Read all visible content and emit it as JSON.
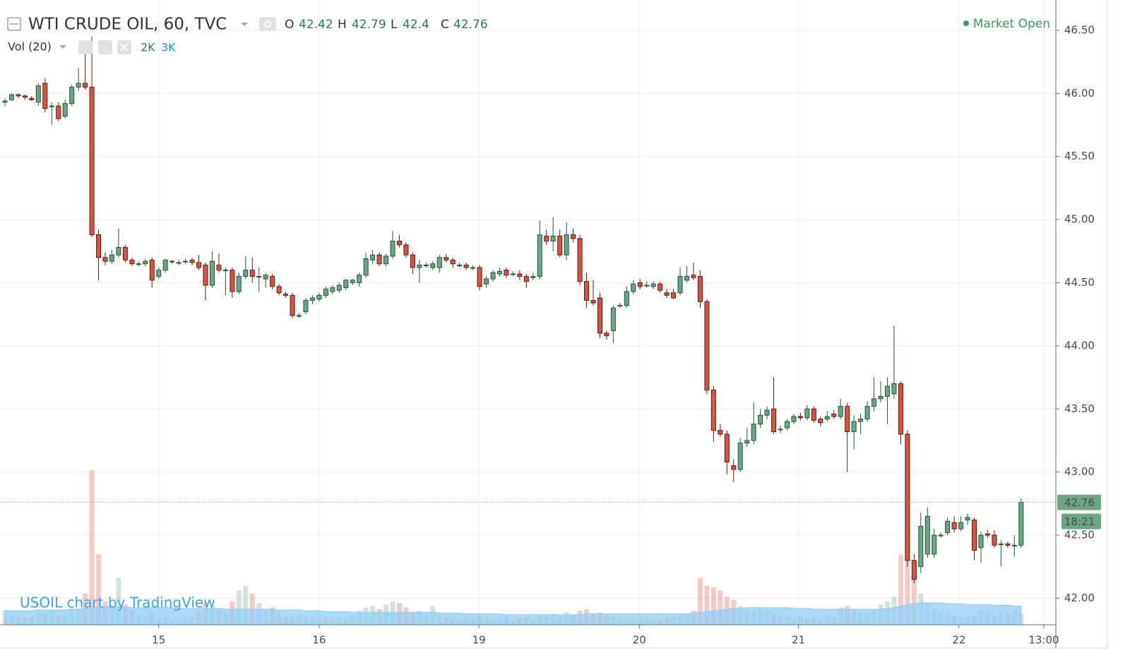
{
  "chart_data": {
    "type": "candlestick",
    "title": "WTI CRUDE OIL, 60, TVC",
    "ohlc_labels": [
      "O",
      "H",
      "L",
      "C"
    ],
    "volume_title": "Vol (20)",
    "volume_legend": [
      "2K",
      "3K"
    ],
    "status": "Market Open",
    "watermark": "USOIL chart by TradingView",
    "countdown": "18:21",
    "up_color": "#6ba583",
    "up_border": "#225437",
    "down_color": "#d75442",
    "down_border": "#5b1a13",
    "volume_ma_color": "#8fcdf5",
    "grid": true,
    "xlim": [
      -0.74,
      157.2
    ],
    "xticks": [
      {
        "value": 23.0,
        "label": "15"
      },
      {
        "value": 47.0,
        "label": "16"
      },
      {
        "value": 70.9,
        "label": "19"
      },
      {
        "value": 94.9,
        "label": "20"
      },
      {
        "value": 118.7,
        "label": "21"
      },
      {
        "value": 142.7,
        "label": "22"
      },
      {
        "value": 155.4,
        "label": "13:00"
      }
    ],
    "ylim": [
      41.79,
      46.74
    ],
    "yticks": [
      {
        "value": 42,
        "label": "42.00"
      },
      {
        "value": 42.5,
        "label": "42.50"
      },
      {
        "value": 43,
        "label": "43.00"
      },
      {
        "value": 43.5,
        "label": "43.50"
      },
      {
        "value": 44,
        "label": "44.00"
      },
      {
        "value": 44.5,
        "label": "44.50"
      },
      {
        "value": 45,
        "label": "45.00"
      },
      {
        "value": 45.5,
        "label": "45.50"
      },
      {
        "value": 46,
        "label": "46.00"
      },
      {
        "value": 46.5,
        "label": "46.50"
      }
    ],
    "volume_lim": [
      0,
      40000
    ],
    "candles": [
      [
        45.93,
        45.96,
        45.9,
        45.94
      ],
      [
        45.95,
        46,
        45.94,
        45.99
      ],
      [
        45.99,
        46,
        45.96,
        45.98
      ],
      [
        45.98,
        45.99,
        45.95,
        45.97
      ],
      [
        45.96,
        45.98,
        45.94,
        45.95
      ],
      [
        45.93,
        46.08,
        45.9,
        46.06
      ],
      [
        46.08,
        46.12,
        45.85,
        45.88
      ],
      [
        45.9,
        45.93,
        45.75,
        45.9
      ],
      [
        45.9,
        45.93,
        45.78,
        45.8
      ],
      [
        45.82,
        45.95,
        45.8,
        45.92
      ],
      [
        45.92,
        46.07,
        45.9,
        46.05
      ],
      [
        46.05,
        46.2,
        46.02,
        46.08
      ],
      [
        46.08,
        46.35,
        46.03,
        46.05
      ],
      [
        46.05,
        46.45,
        44.86,
        44.88
      ],
      [
        44.88,
        44.92,
        44.52,
        44.7
      ],
      [
        44.7,
        44.74,
        44.64,
        44.67
      ],
      [
        44.67,
        44.76,
        44.65,
        44.72
      ],
      [
        44.72,
        44.93,
        44.7,
        44.78
      ],
      [
        44.78,
        44.8,
        44.66,
        44.68
      ],
      [
        44.68,
        44.7,
        44.63,
        44.65
      ],
      [
        44.65,
        44.67,
        44.63,
        44.65
      ],
      [
        44.65,
        44.69,
        44.63,
        44.67
      ],
      [
        44.68,
        44.7,
        44.46,
        44.52
      ],
      [
        44.55,
        44.62,
        44.53,
        44.6
      ],
      [
        44.6,
        44.69,
        44.58,
        44.68
      ],
      [
        44.67,
        44.68,
        44.65,
        44.67
      ],
      [
        44.66,
        44.68,
        44.64,
        44.66
      ],
      [
        44.67,
        44.69,
        44.65,
        44.67
      ],
      [
        44.68,
        44.7,
        44.64,
        44.66
      ],
      [
        44.66,
        44.72,
        44.6,
        44.62
      ],
      [
        44.64,
        44.66,
        44.36,
        44.48
      ],
      [
        44.48,
        44.75,
        44.46,
        44.67
      ],
      [
        44.64,
        44.73,
        44.58,
        44.6
      ],
      [
        44.6,
        44.62,
        44.4,
        44.6
      ],
      [
        44.6,
        44.62,
        44.38,
        44.43
      ],
      [
        44.43,
        44.58,
        44.41,
        44.55
      ],
      [
        44.55,
        44.71,
        44.53,
        44.6
      ],
      [
        44.6,
        44.7,
        44.5,
        44.55
      ],
      [
        44.55,
        44.62,
        44.43,
        44.55
      ],
      [
        44.53,
        44.58,
        44.46,
        44.56
      ],
      [
        44.55,
        44.57,
        44.45,
        44.47
      ],
      [
        44.47,
        44.49,
        44.4,
        44.42
      ],
      [
        44.41,
        44.43,
        44.38,
        44.4
      ],
      [
        44.4,
        44.42,
        44.22,
        44.24
      ],
      [
        44.24,
        44.26,
        44.22,
        44.24
      ],
      [
        44.27,
        44.38,
        44.25,
        44.36
      ],
      [
        44.36,
        44.4,
        44.33,
        44.38
      ],
      [
        44.37,
        44.42,
        44.35,
        44.4
      ],
      [
        44.4,
        44.47,
        44.38,
        44.45
      ],
      [
        44.43,
        44.48,
        44.41,
        44.46
      ],
      [
        44.44,
        44.5,
        44.42,
        44.48
      ],
      [
        44.46,
        44.53,
        44.44,
        44.52
      ],
      [
        44.5,
        44.53,
        44.48,
        44.52
      ],
      [
        44.5,
        44.58,
        44.47,
        44.56
      ],
      [
        44.56,
        44.74,
        44.54,
        44.69
      ],
      [
        44.68,
        44.76,
        44.65,
        44.72
      ],
      [
        44.72,
        44.74,
        44.63,
        44.65
      ],
      [
        44.65,
        44.73,
        44.63,
        44.71
      ],
      [
        44.71,
        44.91,
        44.69,
        44.83
      ],
      [
        44.83,
        44.88,
        44.78,
        44.8
      ],
      [
        44.8,
        44.82,
        44.7,
        44.72
      ],
      [
        44.72,
        44.74,
        44.57,
        44.62
      ],
      [
        44.62,
        44.68,
        44.5,
        44.64
      ],
      [
        44.64,
        44.66,
        44.62,
        44.64
      ],
      [
        44.62,
        44.67,
        44.6,
        44.65
      ],
      [
        44.62,
        44.72,
        44.58,
        44.7
      ],
      [
        44.7,
        44.73,
        44.66,
        44.68
      ],
      [
        44.68,
        44.7,
        44.62,
        44.65
      ],
      [
        44.64,
        44.66,
        44.62,
        44.64
      ],
      [
        44.64,
        44.66,
        44.6,
        44.62
      ],
      [
        44.62,
        44.64,
        44.6,
        44.62
      ],
      [
        44.62,
        44.64,
        44.44,
        44.47
      ],
      [
        44.49,
        44.55,
        44.46,
        44.53
      ],
      [
        44.53,
        44.6,
        44.51,
        44.58
      ],
      [
        44.57,
        44.62,
        44.55,
        44.59
      ],
      [
        44.6,
        44.62,
        44.54,
        44.56
      ],
      [
        44.57,
        44.59,
        44.55,
        44.57
      ],
      [
        44.57,
        44.6,
        44.52,
        44.55
      ],
      [
        44.55,
        44.57,
        44.46,
        44.51
      ],
      [
        44.54,
        44.58,
        44.52,
        44.55
      ],
      [
        44.55,
        44.99,
        44.53,
        44.88
      ],
      [
        44.87,
        44.92,
        44.8,
        44.83
      ],
      [
        44.83,
        45.02,
        44.75,
        44.87
      ],
      [
        44.87,
        44.92,
        44.7,
        44.72
      ],
      [
        44.72,
        44.98,
        44.68,
        44.88
      ],
      [
        44.88,
        44.93,
        44.82,
        44.85
      ],
      [
        44.85,
        44.88,
        44.48,
        44.51
      ],
      [
        44.51,
        44.58,
        44.3,
        44.36
      ],
      [
        44.36,
        44.52,
        44.32,
        44.34
      ],
      [
        44.38,
        44.42,
        44.06,
        44.1
      ],
      [
        44.1,
        44.12,
        44.05,
        44.08
      ],
      [
        44.12,
        44.32,
        44.02,
        44.3
      ],
      [
        44.32,
        44.34,
        44.3,
        44.32
      ],
      [
        44.32,
        44.47,
        44.3,
        44.43
      ],
      [
        44.43,
        44.52,
        44.41,
        44.49
      ],
      [
        44.5,
        44.53,
        44.45,
        44.47
      ],
      [
        44.48,
        44.51,
        44.46,
        44.48
      ],
      [
        44.47,
        44.51,
        44.45,
        44.49
      ],
      [
        44.49,
        44.51,
        44.42,
        44.44
      ],
      [
        44.42,
        44.45,
        44.38,
        44.4
      ],
      [
        44.42,
        44.45,
        44.37,
        44.38
      ],
      [
        44.42,
        44.62,
        44.4,
        44.55
      ],
      [
        44.52,
        44.63,
        44.5,
        44.55
      ],
      [
        44.56,
        44.66,
        44.52,
        44.54
      ],
      [
        44.55,
        44.6,
        44.3,
        44.35
      ],
      [
        44.35,
        44.37,
        43.62,
        43.65
      ],
      [
        43.65,
        43.68,
        43.24,
        43.33
      ],
      [
        43.33,
        43.38,
        43.28,
        43.3
      ],
      [
        43.3,
        43.33,
        42.98,
        43.08
      ],
      [
        43.05,
        43.1,
        42.92,
        43.02
      ],
      [
        43.02,
        43.27,
        43,
        43.23
      ],
      [
        43.23,
        43.35,
        43.2,
        43.25
      ],
      [
        43.25,
        43.55,
        43.22,
        43.38
      ],
      [
        43.38,
        43.5,
        43.35,
        43.45
      ],
      [
        43.45,
        43.52,
        43.42,
        43.49
      ],
      [
        43.5,
        43.75,
        43.3,
        43.32
      ],
      [
        43.34,
        43.37,
        43.31,
        43.34
      ],
      [
        43.35,
        43.42,
        43.33,
        43.4
      ],
      [
        43.4,
        43.46,
        43.38,
        43.44
      ],
      [
        43.44,
        43.47,
        43.41,
        43.43
      ],
      [
        43.43,
        43.53,
        43.41,
        43.5
      ],
      [
        43.5,
        43.52,
        43.39,
        43.41
      ],
      [
        43.42,
        43.44,
        43.36,
        43.39
      ],
      [
        43.42,
        43.48,
        43.4,
        43.44
      ],
      [
        43.46,
        43.49,
        43.42,
        43.44
      ],
      [
        43.44,
        43.58,
        43.42,
        43.52
      ],
      [
        43.52,
        43.55,
        43,
        43.32
      ],
      [
        43.32,
        43.45,
        43.18,
        43.4
      ],
      [
        43.4,
        43.46,
        43.3,
        43.42
      ],
      [
        43.42,
        43.56,
        43.4,
        43.52
      ],
      [
        43.52,
        43.75,
        43.48,
        43.58
      ],
      [
        43.58,
        43.72,
        43.55,
        43.6
      ],
      [
        43.6,
        43.75,
        43.38,
        43.68
      ],
      [
        43.62,
        44.16,
        43.58,
        43.7
      ],
      [
        43.7,
        43.72,
        43.22,
        43.3
      ],
      [
        43.3,
        43.33,
        42.25,
        42.3
      ],
      [
        42.3,
        42.35,
        42.12,
        42.15
      ],
      [
        42.25,
        42.68,
        42.2,
        42.57
      ],
      [
        42.35,
        42.72,
        42.32,
        42.65
      ],
      [
        42.35,
        42.55,
        42.32,
        42.5
      ],
      [
        42.5,
        42.52,
        42.48,
        42.5
      ],
      [
        42.52,
        42.64,
        42.5,
        42.61
      ],
      [
        42.6,
        42.65,
        42.52,
        42.55
      ],
      [
        42.55,
        42.65,
        42.53,
        42.6
      ],
      [
        42.62,
        42.67,
        42.58,
        42.64
      ],
      [
        42.62,
        42.64,
        42.3,
        42.38
      ],
      [
        42.4,
        42.53,
        42.28,
        42.5
      ],
      [
        42.51,
        42.54,
        42.48,
        42.5
      ],
      [
        42.5,
        42.54,
        42.4,
        42.42
      ],
      [
        42.43,
        42.46,
        42.25,
        42.43
      ],
      [
        42.43,
        42.45,
        42.4,
        42.42
      ],
      [
        42.42,
        42.5,
        42.33,
        42.42
      ],
      [
        42.42,
        42.79,
        42.4,
        42.76
      ]
    ],
    "volume": [
      900,
      600,
      500,
      400,
      500,
      800,
      700,
      900,
      600,
      700,
      800,
      1000,
      2000,
      9900,
      4500,
      1500,
      1200,
      3000,
      1300,
      900,
      600,
      500,
      700,
      400,
      500,
      300,
      300,
      400,
      500,
      800,
      1400,
      1200,
      900,
      800,
      1500,
      2200,
      2500,
      2000,
      1400,
      900,
      1100,
      700,
      500,
      400,
      600,
      500,
      400,
      300,
      400,
      300,
      500,
      400,
      600,
      900,
      1100,
      1200,
      1000,
      1300,
      1500,
      1400,
      1100,
      800,
      900,
      700,
      1200,
      600,
      500,
      400,
      300,
      300,
      400,
      600,
      500,
      300,
      300,
      400,
      300,
      400,
      500,
      300,
      600,
      500,
      700,
      500,
      800,
      600,
      900,
      1000,
      700,
      800,
      600,
      500,
      400,
      300,
      300,
      300,
      400,
      300,
      300,
      400,
      500,
      600,
      700,
      900,
      3000,
      2500,
      2400,
      2200,
      1800,
      1600,
      1200,
      900,
      800,
      1000,
      900,
      700,
      600,
      500,
      400,
      500,
      400,
      400,
      300,
      600,
      500,
      1100,
      1200,
      900,
      800,
      700,
      900,
      1300,
      1500,
      1800,
      4500,
      5400,
      3200,
      2000,
      1400,
      1000,
      800,
      700,
      600,
      500,
      500,
      600,
      900,
      700,
      600,
      800,
      700,
      900,
      700
    ],
    "volume_ma": [
      900,
      900,
      900,
      900,
      900,
      950,
      950,
      950,
      950,
      950,
      1000,
      1000,
      1050,
      1100,
      1150,
      1150,
      1150,
      1150,
      1150,
      1100,
      1100,
      1100,
      1100,
      1100,
      1100,
      1100,
      1050,
      1050,
      1050,
      1050,
      1050,
      1050,
      1050,
      1000,
      1000,
      1000,
      1000,
      1000,
      1000,
      1000,
      1000,
      950,
      950,
      950,
      950,
      900,
      900,
      900,
      850,
      850,
      850,
      850,
      800,
      800,
      800,
      800,
      800,
      800,
      800,
      800,
      800,
      800,
      800,
      800,
      800,
      750,
      750,
      750,
      750,
      700,
      700,
      700,
      700,
      700,
      700,
      650,
      650,
      650,
      650,
      650,
      650,
      650,
      650,
      650,
      650,
      650,
      650,
      700,
      700,
      700,
      700,
      700,
      700,
      700,
      700,
      700,
      700,
      700,
      700,
      700,
      700,
      700,
      700,
      750,
      800,
      850,
      900,
      950,
      1000,
      1050,
      1050,
      1100,
      1100,
      1100,
      1100,
      1100,
      1100,
      1100,
      1050,
      1050,
      1050,
      1000,
      1000,
      1000,
      1000,
      1000,
      1000,
      1000,
      1000,
      1000,
      1000,
      1000,
      1050,
      1100,
      1200,
      1300,
      1350,
      1400,
      1400,
      1400,
      1400,
      1350,
      1350,
      1350,
      1300,
      1300,
      1300,
      1300,
      1250,
      1250,
      1250,
      1200,
      1200
    ]
  }
}
